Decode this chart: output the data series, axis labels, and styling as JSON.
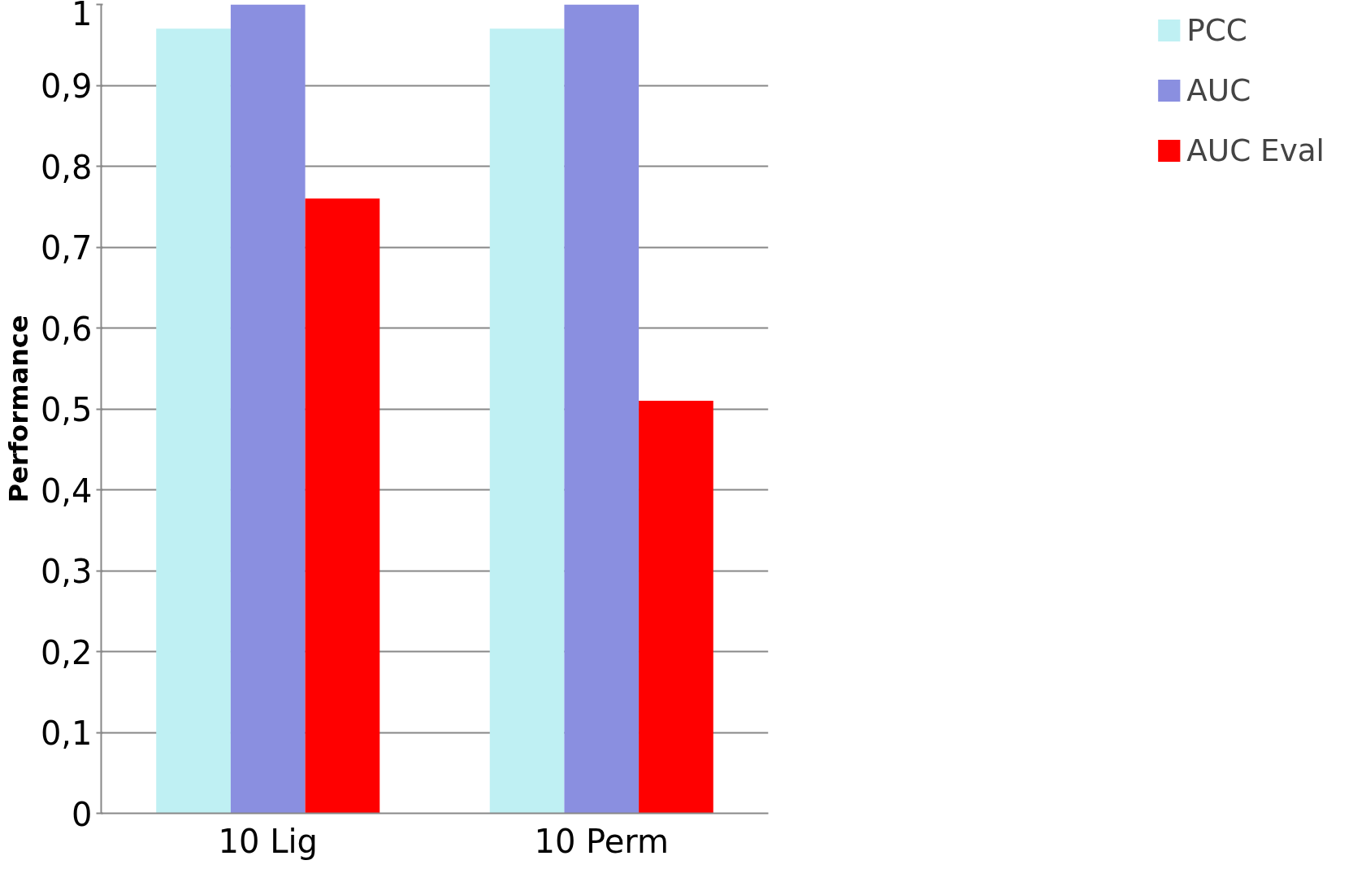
{
  "chart_data": {
    "type": "bar",
    "ylabel": "Performance",
    "categories": [
      "10 Lig",
      "10 Perm"
    ],
    "series": [
      {
        "name": "PCC",
        "color": "#bff0f3",
        "values": [
          0.97,
          0.97
        ]
      },
      {
        "name": "AUC",
        "color": "#8a8fe0",
        "values": [
          1.0,
          1.0
        ]
      },
      {
        "name": "AUC Eval",
        "color": "#ff0000",
        "values": [
          0.76,
          0.51
        ]
      }
    ],
    "ylim": [
      0,
      1
    ],
    "yticks": [
      0,
      {
        "value": 0.1,
        "label": "0,1"
      },
      {
        "value": 0.2,
        "label": "0,2"
      },
      {
        "value": 0.3,
        "label": "0,3"
      },
      {
        "value": 0.4,
        "label": "0,4"
      },
      {
        "value": 0.5,
        "label": "0,5"
      },
      {
        "value": 0.6,
        "label": "0,6"
      },
      {
        "value": 0.7,
        "label": "0,7"
      },
      {
        "value": 0.8,
        "label": "0,8"
      },
      {
        "value": 0.9,
        "label": "0,9"
      },
      1
    ],
    "grid": "y",
    "legend": "right"
  }
}
